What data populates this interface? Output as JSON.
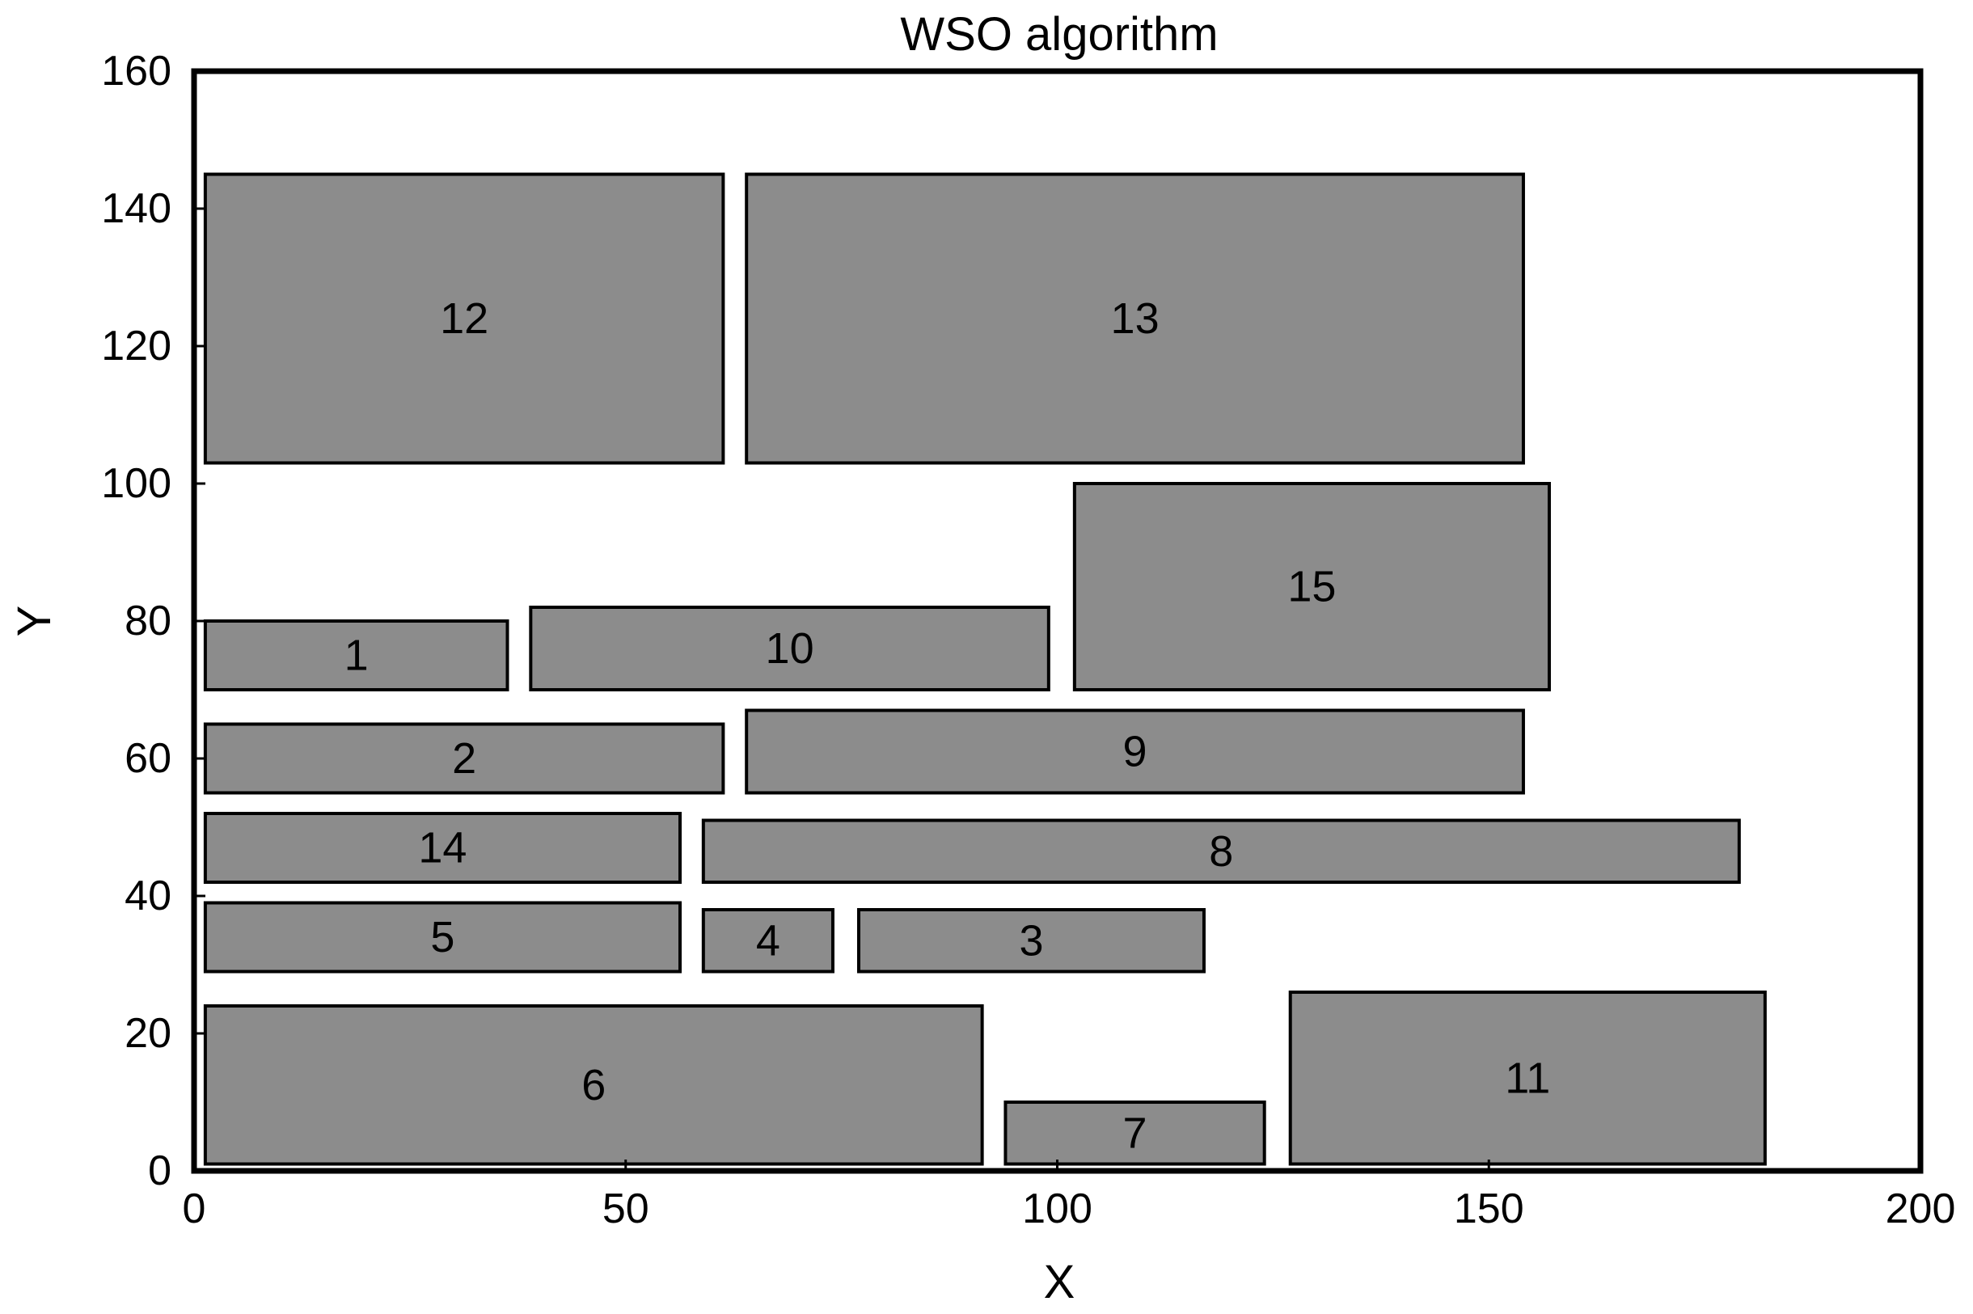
{
  "chart_data": {
    "type": "rectangle-layout",
    "title": "WSO algorithm",
    "xlabel": "X",
    "ylabel": "Y",
    "xlim": [
      0,
      200
    ],
    "ylim": [
      0,
      160
    ],
    "xticks": [
      "0",
      "50",
      "100",
      "150",
      "200"
    ],
    "yticks": [
      "0",
      "20",
      "40",
      "60",
      "80",
      "100",
      "120",
      "140",
      "160"
    ],
    "grid": false,
    "fill_color": "#8c8c8c",
    "edge_color": "#000000",
    "rects": [
      {
        "label": "1",
        "x0": 1.3,
        "y0": 70.0,
        "x1": 36.3,
        "y1": 80.0
      },
      {
        "label": "2",
        "x0": 1.3,
        "y0": 55.0,
        "x1": 61.3,
        "y1": 65.0
      },
      {
        "label": "3",
        "x0": 77.0,
        "y0": 29.0,
        "x1": 117.0,
        "y1": 38.0
      },
      {
        "label": "4",
        "x0": 59.0,
        "y0": 29.0,
        "x1": 74.0,
        "y1": 38.0
      },
      {
        "label": "5",
        "x0": 1.3,
        "y0": 29.0,
        "x1": 56.3,
        "y1": 39.0
      },
      {
        "label": "6",
        "x0": 1.3,
        "y0": 1.0,
        "x1": 91.3,
        "y1": 24.0
      },
      {
        "label": "7",
        "x0": 94.0,
        "y0": 1.0,
        "x1": 124.0,
        "y1": 10.0
      },
      {
        "label": "8",
        "x0": 59.0,
        "y0": 42.0,
        "x1": 179.0,
        "y1": 51.0
      },
      {
        "label": "9",
        "x0": 64.0,
        "y0": 55.0,
        "x1": 154.0,
        "y1": 67.0
      },
      {
        "label": "10",
        "x0": 39.0,
        "y0": 70.0,
        "x1": 99.0,
        "y1": 82.0
      },
      {
        "label": "11",
        "x0": 127.0,
        "y0": 1.0,
        "x1": 182.0,
        "y1": 26.0
      },
      {
        "label": "12",
        "x0": 1.3,
        "y0": 103.0,
        "x1": 61.3,
        "y1": 145.0
      },
      {
        "label": "13",
        "x0": 64.0,
        "y0": 103.0,
        "x1": 154.0,
        "y1": 145.0
      },
      {
        "label": "14",
        "x0": 1.3,
        "y0": 42.0,
        "x1": 56.3,
        "y1": 52.0
      },
      {
        "label": "15",
        "x0": 102.0,
        "y0": 70.0,
        "x1": 157.0,
        "y1": 100.0
      }
    ]
  }
}
